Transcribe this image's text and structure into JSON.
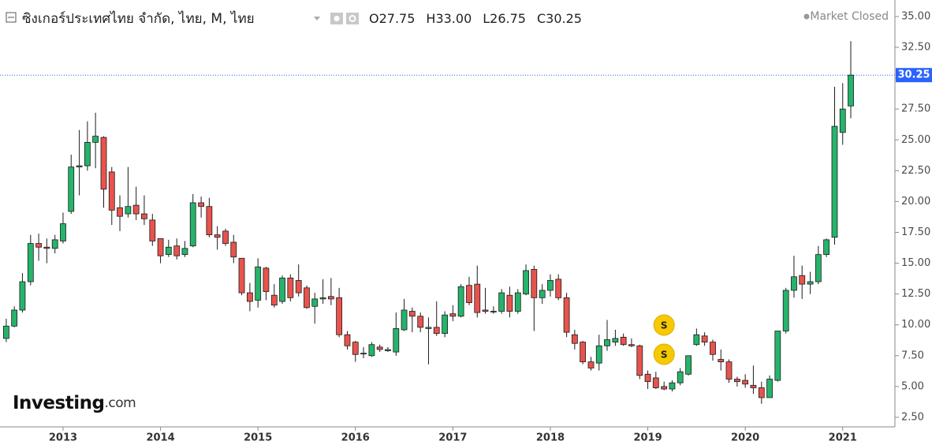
{
  "chart_data": {
    "type": "candlestick",
    "header": {
      "title": "ซิงเกอร์ประเทศไทย จำกัด, ไทย, M, ไทย",
      "fields": [
        {
          "label": "O",
          "value": "27.75"
        },
        {
          "label": "H",
          "value": "33.00"
        },
        {
          "label": "L",
          "value": "26.75"
        },
        {
          "label": "C",
          "value": "30.25"
        }
      ],
      "status": "Market Closed"
    },
    "watermark": [
      "Investing",
      ".com"
    ],
    "up_color": "#26b36b",
    "down_color": "#e8534d",
    "outline_color": "#1c1c1c",
    "price_color": "#2962ff",
    "x": [
      2012.417,
      2012.5,
      2012.583,
      2012.667,
      2012.75,
      2012.833,
      2012.917,
      2013,
      2013.083,
      2013.167,
      2013.25,
      2013.333,
      2013.417,
      2013.5,
      2013.583,
      2013.667,
      2013.75,
      2013.833,
      2013.917,
      2014,
      2014.083,
      2014.167,
      2014.25,
      2014.333,
      2014.417,
      2014.5,
      2014.583,
      2014.667,
      2014.75,
      2014.833,
      2014.917,
      2015,
      2015.083,
      2015.167,
      2015.25,
      2015.333,
      2015.417,
      2015.5,
      2015.583,
      2015.667,
      2015.75,
      2015.833,
      2015.917,
      2016,
      2016.083,
      2016.167,
      2016.25,
      2016.333,
      2016.417,
      2016.5,
      2016.583,
      2016.667,
      2016.75,
      2016.833,
      2016.917,
      2017,
      2017.083,
      2017.167,
      2017.25,
      2017.333,
      2017.417,
      2017.5,
      2017.583,
      2017.667,
      2017.75,
      2017.833,
      2017.917,
      2018,
      2018.083,
      2018.167,
      2018.25,
      2018.333,
      2018.417,
      2018.5,
      2018.583,
      2018.667,
      2018.75,
      2018.833,
      2018.917,
      2019,
      2019.083,
      2019.167,
      2019.25,
      2019.333,
      2019.417,
      2019.5,
      2019.583,
      2019.667,
      2019.75,
      2019.833,
      2019.917,
      2020,
      2020.083,
      2020.167,
      2020.25,
      2020.333,
      2020.417,
      2020.5,
      2020.583,
      2020.667,
      2020.75,
      2020.833,
      2020.917,
      2021,
      2021.083
    ],
    "open": [
      8.9,
      9.9,
      11.2,
      13.5,
      16.6,
      16.3,
      16.2,
      16.8,
      19.2,
      22.8,
      22.9,
      24.8,
      25.2,
      22.4,
      19.5,
      19.0,
      19.7,
      19.0,
      18.5,
      17.0,
      15.7,
      16.4,
      15.7,
      16.4,
      19.9,
      19.6,
      17.3,
      17.6,
      16.7,
      15.4,
      12.6,
      12.0,
      14.6,
      12.4,
      11.9,
      13.8,
      13.6,
      13.0,
      11.5,
      12.1,
      12.3,
      12.2,
      9.2,
      8.6,
      7.7,
      7.5,
      8.2,
      7.9,
      7.8,
      9.6,
      11.1,
      10.7,
      9.7,
      9.8,
      9.3,
      10.9,
      10.7,
      13.2,
      13.3,
      11.2,
      11.1,
      11.1,
      12.4,
      11.1,
      12.5,
      14.5,
      12.2,
      12.8,
      13.7,
      12.2,
      9.2,
      8.6,
      7.0,
      6.9,
      8.3,
      8.6,
      9.0,
      8.4,
      8.3,
      6.0,
      5.7,
      5.0,
      4.8,
      5.3,
      6.0,
      8.4,
      9.1,
      8.6,
      7.2,
      7.0,
      5.6,
      5.5,
      5.1,
      4.9,
      4.1,
      5.5,
      9.5,
      12.8,
      14.0,
      13.3,
      13.5,
      15.7,
      17.1,
      25.6,
      27.75
    ],
    "high": [
      10.5,
      11.5,
      14.2,
      17.3,
      17.4,
      17.0,
      17.3,
      19.1,
      23.8,
      25.8,
      26.5,
      27.2,
      25.3,
      22.8,
      20.5,
      22.8,
      21.2,
      20.5,
      19.0,
      17.0,
      16.9,
      17.0,
      16.8,
      20.6,
      20.4,
      20.3,
      18.0,
      17.8,
      17.3,
      15.4,
      13.4,
      15.4,
      14.7,
      13.3,
      14.0,
      14.1,
      14.9,
      13.2,
      12.6,
      13.7,
      13.8,
      13.0,
      9.5,
      8.7,
      8.2,
      8.6,
      8.4,
      8.2,
      11.0,
      12.1,
      11.4,
      11.0,
      10.6,
      11.9,
      11.1,
      11.6,
      13.3,
      13.9,
      14.8,
      13.0,
      11.5,
      12.9,
      13.1,
      12.9,
      14.9,
      14.8,
      13.3,
      14.1,
      14.1,
      12.6,
      9.6,
      8.7,
      7.4,
      9.2,
      10.4,
      9.6,
      9.3,
      8.9,
      8.4,
      6.3,
      6.2,
      5.4,
      5.5,
      6.5,
      7.5,
      9.7,
      9.4,
      8.8,
      8.0,
      7.2,
      5.8,
      6.0,
      6.7,
      5.4,
      5.9,
      9.5,
      13.0,
      15.6,
      14.8,
      14.3,
      16.4,
      17.0,
      29.3,
      29.6,
      33.0
    ],
    "low": [
      8.6,
      9.8,
      11.0,
      13.2,
      15.2,
      15.0,
      15.8,
      16.6,
      19.0,
      20.5,
      22.5,
      22.7,
      19.5,
      18.1,
      17.6,
      18.7,
      18.5,
      18.1,
      16.4,
      15.0,
      15.5,
      15.3,
      15.5,
      16.3,
      18.7,
      17.1,
      16.1,
      16.4,
      15.0,
      12.4,
      11.1,
      11.4,
      12.0,
      11.4,
      11.7,
      11.9,
      12.3,
      11.3,
      10.1,
      11.7,
      11.6,
      9.0,
      8.0,
      7.0,
      7.3,
      7.4,
      7.8,
      7.8,
      7.5,
      9.5,
      9.4,
      9.4,
      6.8,
      9.1,
      9.0,
      10.3,
      10.6,
      11.6,
      10.6,
      10.9,
      10.9,
      10.9,
      10.6,
      10.9,
      12.4,
      9.5,
      11.7,
      12.3,
      12.0,
      9.0,
      8.0,
      6.8,
      6.3,
      6.3,
      7.9,
      8.3,
      8.3,
      8.2,
      5.6,
      4.8,
      4.8,
      4.7,
      4.6,
      5.1,
      5.9,
      8.3,
      8.3,
      7.1,
      6.3,
      5.3,
      5.0,
      4.9,
      4.4,
      3.6,
      4.1,
      5.4,
      9.3,
      12.2,
      12.1,
      12.5,
      13.3,
      15.5,
      16.5,
      24.6,
      26.75
    ],
    "close": [
      9.9,
      11.2,
      13.5,
      16.6,
      16.3,
      16.2,
      16.9,
      18.2,
      22.8,
      22.9,
      24.8,
      25.3,
      21.0,
      19.3,
      18.8,
      19.6,
      19.0,
      18.6,
      16.8,
      15.6,
      16.3,
      15.6,
      16.2,
      19.9,
      19.6,
      17.3,
      17.1,
      16.6,
      15.5,
      12.6,
      11.9,
      14.7,
      12.7,
      11.6,
      13.8,
      12.2,
      12.6,
      11.4,
      12.1,
      12.2,
      12.1,
      9.2,
      8.3,
      7.6,
      7.7,
      8.4,
      8.0,
      8.0,
      9.7,
      11.2,
      10.7,
      9.8,
      9.8,
      9.3,
      10.8,
      10.7,
      13.1,
      11.8,
      11.0,
      11.1,
      11.1,
      12.6,
      11.1,
      12.6,
      14.4,
      12.2,
      12.8,
      13.6,
      12.2,
      9.4,
      8.5,
      7.0,
      6.5,
      8.3,
      8.8,
      8.9,
      8.4,
      8.3,
      5.9,
      5.4,
      4.9,
      4.8,
      5.3,
      6.2,
      7.5,
      9.2,
      8.6,
      7.6,
      7.0,
      5.6,
      5.4,
      5.2,
      4.9,
      4.1,
      5.6,
      9.5,
      12.8,
      13.9,
      13.3,
      13.5,
      15.7,
      16.9,
      26.1,
      27.5,
      30.25
    ],
    "last_price": {
      "value": 30.25,
      "label": "30.25"
    },
    "events": [
      {
        "x": 2019.167,
        "label": "S"
      },
      {
        "x": 2019.167,
        "label": "S"
      }
    ],
    "xlim": [
      2012.353,
      2021.536
    ],
    "xticks": [
      2013,
      2014,
      2015,
      2016,
      2017,
      2018,
      2019,
      2020,
      2021
    ],
    "ylim": [
      1.73,
      36.34
    ],
    "yticks": [
      {
        "value": 2.5,
        "label": "2.50"
      },
      {
        "value": 5,
        "label": "5.00"
      },
      {
        "value": 7.5,
        "label": "7.50"
      },
      {
        "value": 10,
        "label": "10.00"
      },
      {
        "value": 12.5,
        "label": "12.50"
      },
      {
        "value": 15,
        "label": "15.00"
      },
      {
        "value": 17.5,
        "label": "17.50"
      },
      {
        "value": 20,
        "label": "20.00"
      },
      {
        "value": 22.5,
        "label": "22.50"
      },
      {
        "value": 25,
        "label": "25.00"
      },
      {
        "value": 27.5,
        "label": "27.50"
      },
      {
        "value": 30,
        "label": "30.00"
      },
      {
        "value": 32.5,
        "label": "32.50"
      },
      {
        "value": 35,
        "label": "35.00"
      }
    ]
  }
}
